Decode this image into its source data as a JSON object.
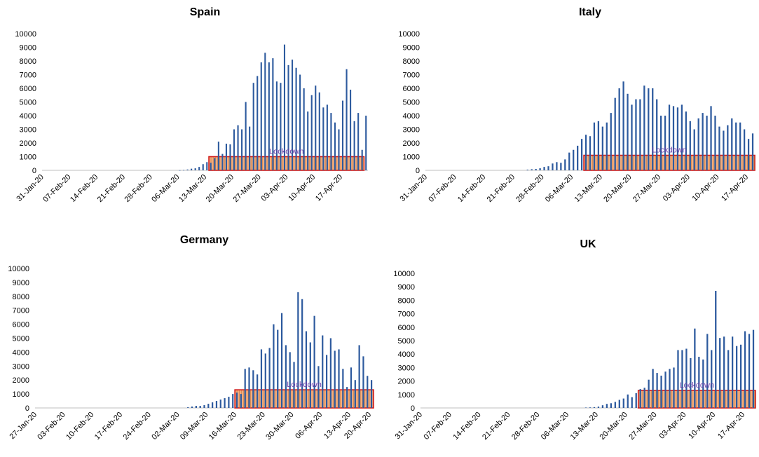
{
  "colors": {
    "bar": "#2d5a9e",
    "lockdown_fill": "#f2a46f",
    "lockdown_border": "#d01a1a",
    "lockdown_text": "#6a3fa8"
  },
  "chart_data": [
    {
      "type": "bar",
      "title": "Spain",
      "start_date": "31-Jan-20",
      "xticks": [
        "31-Jan-20",
        "07-Feb-20",
        "14-Feb-20",
        "21-Feb-20",
        "28-Feb-20",
        "06-Mar-20",
        "13-Mar-20",
        "20-Mar-20",
        "27-Mar-20",
        "03-Apr-20",
        "10-Apr-20",
        "17-Apr-20"
      ],
      "yticks": [
        "0",
        "1000",
        "2000",
        "3000",
        "4000",
        "5000",
        "6000",
        "7000",
        "8000",
        "9000",
        "10000"
      ],
      "ylim": [
        0,
        10000
      ],
      "values": [
        0,
        0,
        0,
        0,
        0,
        0,
        0,
        0,
        0,
        0,
        0,
        0,
        0,
        0,
        0,
        0,
        0,
        0,
        0,
        0,
        0,
        0,
        0,
        0,
        0,
        0,
        0,
        0,
        0,
        0,
        0,
        0,
        0,
        0,
        0,
        10,
        20,
        60,
        120,
        150,
        250,
        450,
        600,
        550,
        900,
        2100,
        1200,
        1950,
        1900,
        3000,
        3300,
        3000,
        5000,
        3200,
        6400,
        6900,
        7900,
        8600,
        7900,
        8200,
        6500,
        6400,
        9200,
        7700,
        8100,
        7500,
        7000,
        6000,
        4300,
        5500,
        6200,
        5700,
        4600,
        4800,
        4200,
        3500,
        3000,
        5100,
        7400,
        5900,
        3600,
        4200,
        1500,
        4000
      ],
      "lockdown": {
        "start": "14-Mar-20",
        "end": "23-Apr-20",
        "level": 1000,
        "label": "Lockdown"
      }
    },
    {
      "type": "bar",
      "title": "Italy",
      "start_date": "31-Jan-20",
      "xticks": [
        "31-Jan-20",
        "07-Feb-20",
        "14-Feb-20",
        "21-Feb-20",
        "28-Feb-20",
        "06-Mar-20",
        "13-Mar-20",
        "20-Mar-20",
        "27-Mar-20",
        "03-Apr-20",
        "10-Apr-20",
        "17-Apr-20"
      ],
      "yticks": [
        "0",
        "1000",
        "2000",
        "3000",
        "4000",
        "5000",
        "6000",
        "7000",
        "8000",
        "9000",
        "10000"
      ],
      "ylim": [
        0,
        10000
      ],
      "values": [
        0,
        0,
        0,
        0,
        0,
        0,
        0,
        0,
        0,
        0,
        0,
        0,
        0,
        0,
        0,
        0,
        0,
        0,
        0,
        0,
        0,
        0,
        0,
        0,
        50,
        80,
        100,
        150,
        250,
        300,
        500,
        600,
        550,
        800,
        1300,
        1500,
        1800,
        2300,
        2600,
        2500,
        3500,
        3600,
        3200,
        3500,
        4200,
        5300,
        6000,
        6500,
        5600,
        4800,
        5200,
        5200,
        6200,
        6000,
        6000,
        5200,
        4000,
        4000,
        4800,
        4700,
        4600,
        4800,
        4300,
        3600,
        3000,
        3800,
        4200,
        4000,
        4700,
        4000,
        3200,
        2900,
        3300,
        3800,
        3500,
        3500,
        3000,
        2300,
        2700
      ],
      "lockdown": {
        "start": "09-Mar-20",
        "end": "19-Apr-20",
        "level": 1100,
        "label": "Lockdown"
      }
    },
    {
      "type": "bar",
      "title": "Germany",
      "start_date": "27-Jan-20",
      "xticks": [
        "27-Jan-20",
        "03-Feb-20",
        "10-Feb-20",
        "17-Feb-20",
        "24-Feb-20",
        "02-Mar-20",
        "09-Mar-20",
        "16-Mar-20",
        "23-Mar-20",
        "30-Mar-20",
        "06-Apr-20",
        "13-Apr-20",
        "20-Apr-20"
      ],
      "yticks": [
        "0",
        "1000",
        "2000",
        "3000",
        "4000",
        "5000",
        "6000",
        "7000",
        "8000",
        "9000",
        "10000"
      ],
      "ylim": [
        0,
        10000
      ],
      "values": [
        0,
        0,
        0,
        0,
        0,
        0,
        0,
        0,
        0,
        0,
        0,
        0,
        0,
        0,
        0,
        0,
        0,
        0,
        0,
        0,
        0,
        0,
        0,
        0,
        0,
        0,
        0,
        0,
        0,
        0,
        0,
        0,
        0,
        0,
        0,
        0,
        0,
        50,
        100,
        150,
        150,
        200,
        300,
        400,
        500,
        600,
        700,
        800,
        1000,
        1100,
        1000,
        2800,
        2900,
        2700,
        2400,
        4200,
        3900,
        4300,
        6000,
        5600,
        6800,
        4500,
        4000,
        3300,
        8300,
        7800,
        5500,
        4700,
        6600,
        3000,
        5200,
        3800,
        5000,
        4100,
        4200,
        2800,
        1500,
        2900,
        2000,
        4500,
        3700,
        2300,
        2000
      ],
      "lockdown": {
        "start": "16-Mar-20",
        "end": "21-Apr-20",
        "level": 1300,
        "label": "Lockdown"
      }
    },
    {
      "type": "bar",
      "title": "UK",
      "start_date": "31-Jan-20",
      "xticks": [
        "31-Jan-20",
        "07-Feb-20",
        "14-Feb-20",
        "21-Feb-20",
        "28-Feb-20",
        "06-Mar-20",
        "13-Mar-20",
        "20-Mar-20",
        "27-Mar-20",
        "03-Apr-20",
        "10-Apr-20",
        "17-Apr-20"
      ],
      "yticks": [
        "0",
        "1000",
        "2000",
        "3000",
        "4000",
        "5000",
        "6000",
        "7000",
        "8000",
        "9000",
        "10000"
      ],
      "ylim": [
        0,
        10000
      ],
      "values": [
        0,
        0,
        0,
        0,
        0,
        0,
        0,
        0,
        0,
        0,
        0,
        0,
        0,
        0,
        0,
        0,
        0,
        0,
        0,
        0,
        0,
        0,
        0,
        0,
        0,
        0,
        0,
        0,
        0,
        0,
        0,
        0,
        0,
        0,
        0,
        0,
        0,
        0,
        0,
        30,
        40,
        60,
        100,
        200,
        300,
        350,
        450,
        600,
        700,
        1000,
        800,
        1100,
        1400,
        1500,
        2100,
        2900,
        2600,
        2400,
        2700,
        2900,
        3000,
        4300,
        4300,
        4400,
        3700,
        5900,
        3800,
        3600,
        5500,
        4300,
        8700,
        5200,
        5300,
        4300,
        5300,
        4600,
        4700,
        5700,
        5500,
        5800
      ],
      "lockdown": {
        "start": "23-Mar-20",
        "end": "20-Apr-20",
        "level": 1300,
        "label": "Lockdown"
      }
    }
  ]
}
